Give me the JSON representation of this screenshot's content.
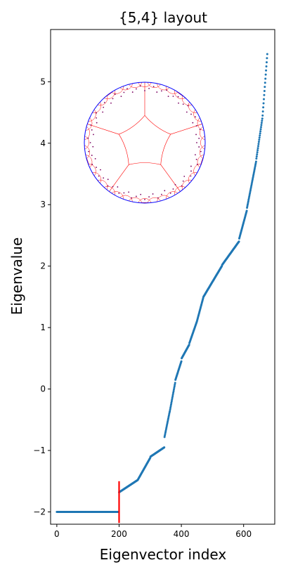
{
  "chart_data": {
    "type": "scatter",
    "title": "{5,4} layout",
    "xlabel": "Eigenvector index",
    "ylabel": "Eigenvalue",
    "xlim": [
      -20,
      700
    ],
    "ylim": [
      -2.2,
      5.85
    ],
    "x_ticks": [
      0,
      200,
      400,
      600
    ],
    "y_ticks": [
      -2,
      -1,
      0,
      1,
      2,
      3,
      4,
      5
    ],
    "grid": false,
    "point_color": "#1f77b4",
    "marker_color": "#ff0000",
    "inset_tiling": "{5,4} hyperbolic tiling in Poincaré disk",
    "inset_circle_color": "#0000ff",
    "inset_line_color": "#ff0000",
    "segments": [
      {
        "x_start": 0,
        "x_end": 199,
        "y_start": -2.0,
        "y_end": -2.0
      },
      {
        "x_start": 200,
        "x_end": 260,
        "y_start": -1.68,
        "y_end": -1.48
      },
      {
        "x_start": 261,
        "x_end": 300,
        "y_start": -1.47,
        "y_end": -1.12
      },
      {
        "x_start": 301,
        "x_end": 345,
        "y_start": -1.1,
        "y_end": -0.95
      },
      {
        "x_start": 346,
        "x_end": 362,
        "y_start": -0.78,
        "y_end": -0.38
      },
      {
        "x_start": 363,
        "x_end": 380,
        "y_start": -0.36,
        "y_end": 0.1
      },
      {
        "x_start": 381,
        "x_end": 400,
        "y_start": 0.15,
        "y_end": 0.45
      },
      {
        "x_start": 401,
        "x_end": 425,
        "y_start": 0.5,
        "y_end": 0.72
      },
      {
        "x_start": 426,
        "x_end": 450,
        "y_start": 0.75,
        "y_end": 1.1
      },
      {
        "x_start": 451,
        "x_end": 470,
        "y_start": 1.12,
        "y_end": 1.48
      },
      {
        "x_start": 471,
        "x_end": 530,
        "y_start": 1.5,
        "y_end": 2.0
      },
      {
        "x_start": 531,
        "x_end": 585,
        "y_start": 2.02,
        "y_end": 2.4
      },
      {
        "x_start": 586,
        "x_end": 610,
        "y_start": 2.45,
        "y_end": 2.9
      },
      {
        "x_start": 611,
        "x_end": 640,
        "y_start": 2.95,
        "y_end": 3.7
      },
      {
        "x_start": 641,
        "x_end": 660,
        "y_start": 3.75,
        "y_end": 4.4
      },
      {
        "x_start": 661,
        "x_end": 676,
        "y_start": 4.45,
        "y_end": 5.45
      }
    ],
    "vertical_marker": {
      "x": 200,
      "y_range": [
        -2.18,
        -1.5
      ]
    }
  }
}
